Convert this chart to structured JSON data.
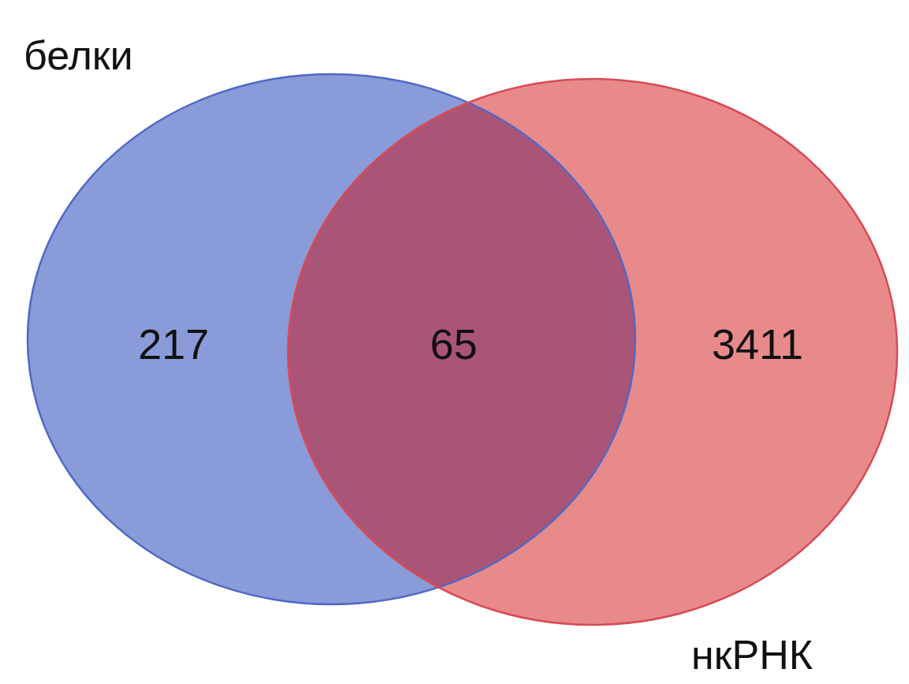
{
  "chart_data": {
    "type": "other",
    "categories": [
      null,
      null,
      null
    ],
    "values": [
      217,
      65,
      3411
    ],
    "colors": [
      "#899bd8",
      "#aa5577",
      "#e88a8a"
    ],
    "data_labels": true,
    "annotations": [
      "белки",
      "нкРНК"
    ]
  }
}
